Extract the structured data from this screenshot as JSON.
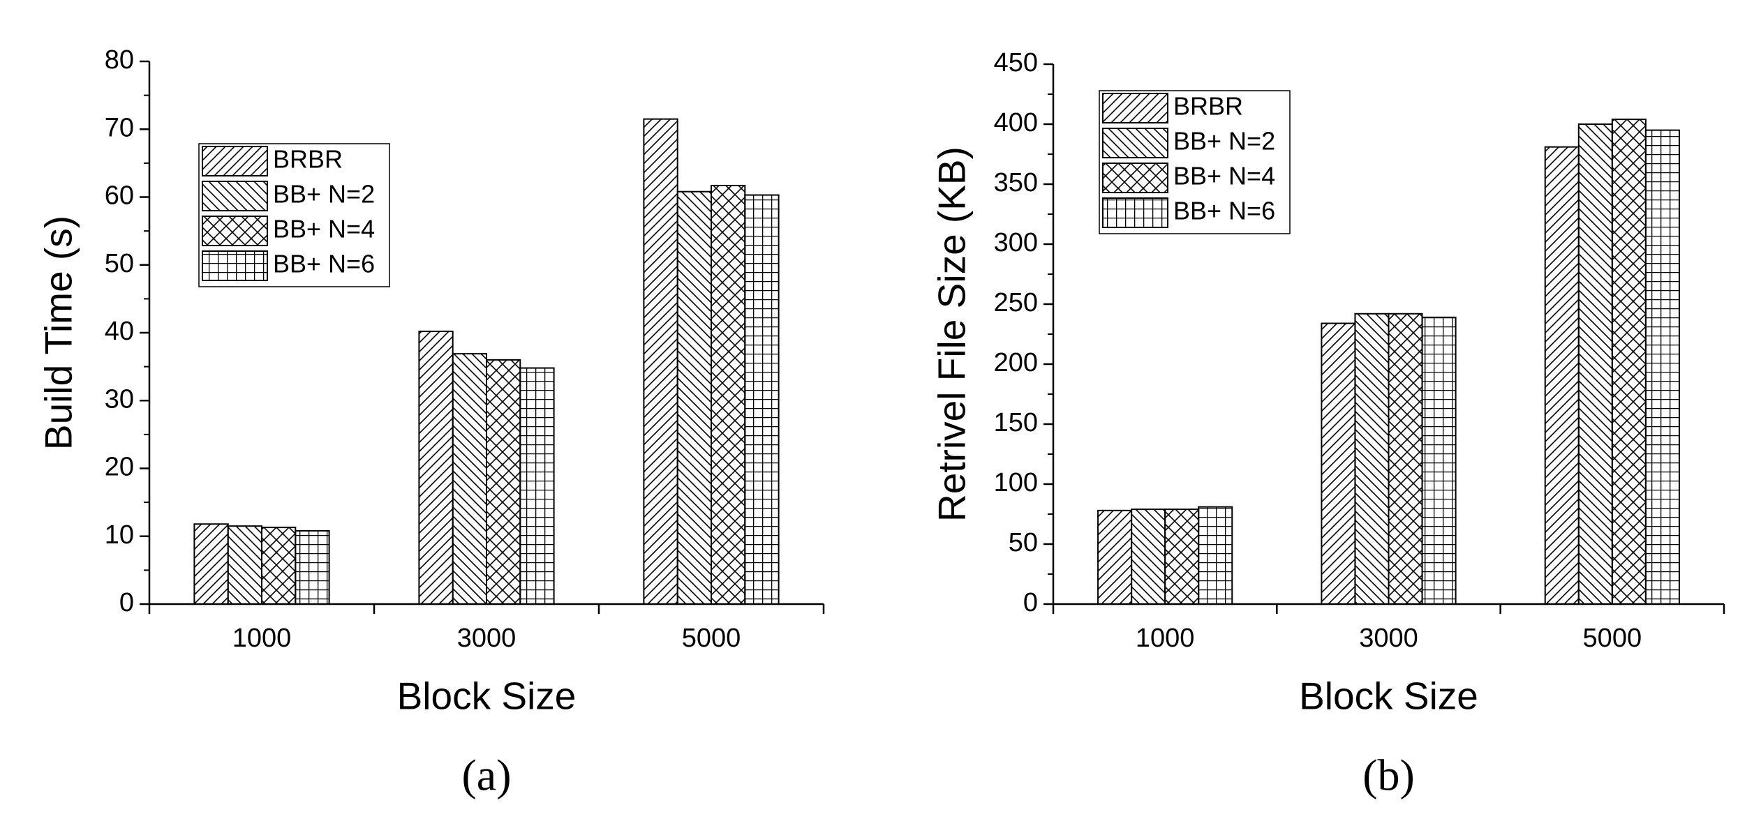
{
  "chart_data": [
    {
      "type": "bar",
      "panel_label": "(a)",
      "x_label": "Block Size",
      "y_label": "Build Time (s)",
      "categories": [
        "1000",
        "3000",
        "5000"
      ],
      "series": [
        {
          "name": "BRBR",
          "color": "#000000",
          "pattern": "forward-diagonal",
          "values": [
            11.8,
            40.2,
            71.5
          ]
        },
        {
          "name": "BB+ N=2",
          "color": "#000000",
          "pattern": "backward-diagonal",
          "values": [
            11.5,
            36.9,
            60.8
          ]
        },
        {
          "name": "BB+ N=4",
          "color": "#000000",
          "pattern": "crosshatch",
          "values": [
            11.3,
            36.0,
            61.7
          ]
        },
        {
          "name": "BB+ N=6",
          "color": "#000000",
          "pattern": "grid",
          "values": [
            10.8,
            34.8,
            60.3
          ]
        }
      ],
      "ylim": [
        0,
        80
      ],
      "yticks": [
        0,
        10,
        20,
        30,
        40,
        50,
        60,
        70,
        80
      ],
      "legend": "upper left",
      "grid": false
    },
    {
      "type": "bar",
      "panel_label": "(b)",
      "x_label": "Block Size",
      "y_label": "Retrivel File Size (KB)",
      "categories": [
        "1000",
        "3000",
        "5000"
      ],
      "series": [
        {
          "name": "BRBR",
          "color": "#000000",
          "pattern": "forward-diagonal",
          "values": [
            78,
            234,
            381
          ]
        },
        {
          "name": "BB+ N=2",
          "color": "#000000",
          "pattern": "backward-diagonal",
          "values": [
            79,
            242,
            400
          ]
        },
        {
          "name": "BB+ N=4",
          "color": "#000000",
          "pattern": "crosshatch",
          "values": [
            79,
            242,
            404
          ]
        },
        {
          "name": "BB+ N=6",
          "color": "#000000",
          "pattern": "grid",
          "values": [
            81,
            239,
            395
          ]
        }
      ],
      "ylim": [
        0,
        450
      ],
      "yticks": [
        0,
        50,
        100,
        150,
        200,
        250,
        300,
        350,
        400,
        450
      ],
      "legend": "upper left",
      "grid": false
    }
  ]
}
